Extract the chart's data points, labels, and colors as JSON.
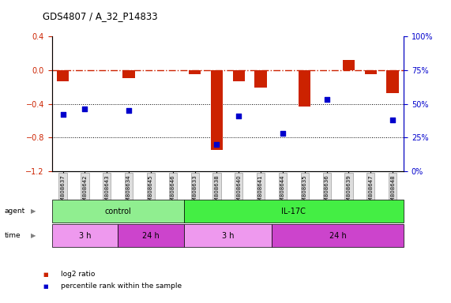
{
  "title": "GDS4807 / A_32_P14833",
  "samples": [
    "GSM808637",
    "GSM808642",
    "GSM808643",
    "GSM808634",
    "GSM808645",
    "GSM808646",
    "GSM808633",
    "GSM808638",
    "GSM808640",
    "GSM808641",
    "GSM808644",
    "GSM808635",
    "GSM808636",
    "GSM808639",
    "GSM808647",
    "GSM808648"
  ],
  "log2_ratio": [
    -0.13,
    0.0,
    0.0,
    -0.1,
    0.0,
    0.0,
    -0.05,
    -0.95,
    -0.13,
    -0.21,
    0.0,
    -0.43,
    0.0,
    0.12,
    -0.05,
    -0.27
  ],
  "percentile_rank": [
    42,
    46,
    null,
    45,
    null,
    null,
    null,
    20,
    41,
    null,
    28,
    null,
    53,
    null,
    null,
    38
  ],
  "agent_groups": [
    {
      "label": "control",
      "start": 0,
      "end": 6,
      "color": "#90EE90"
    },
    {
      "label": "IL-17C",
      "start": 6,
      "end": 16,
      "color": "#44EE44"
    }
  ],
  "time_groups": [
    {
      "label": "3 h",
      "start": 0,
      "end": 3,
      "color": "#EE99EE"
    },
    {
      "label": "24 h",
      "start": 3,
      "end": 6,
      "color": "#CC44CC"
    },
    {
      "label": "3 h",
      "start": 6,
      "end": 10,
      "color": "#EE99EE"
    },
    {
      "label": "24 h",
      "start": 10,
      "end": 16,
      "color": "#CC44CC"
    }
  ],
  "ylim_left": [
    -1.2,
    0.4
  ],
  "ylim_right": [
    0,
    100
  ],
  "bar_color": "#CC2200",
  "dot_color": "#0000CC",
  "dashed_line_color": "#CC2200",
  "grid_color": "#000000",
  "bg_color": "#FFFFFF"
}
